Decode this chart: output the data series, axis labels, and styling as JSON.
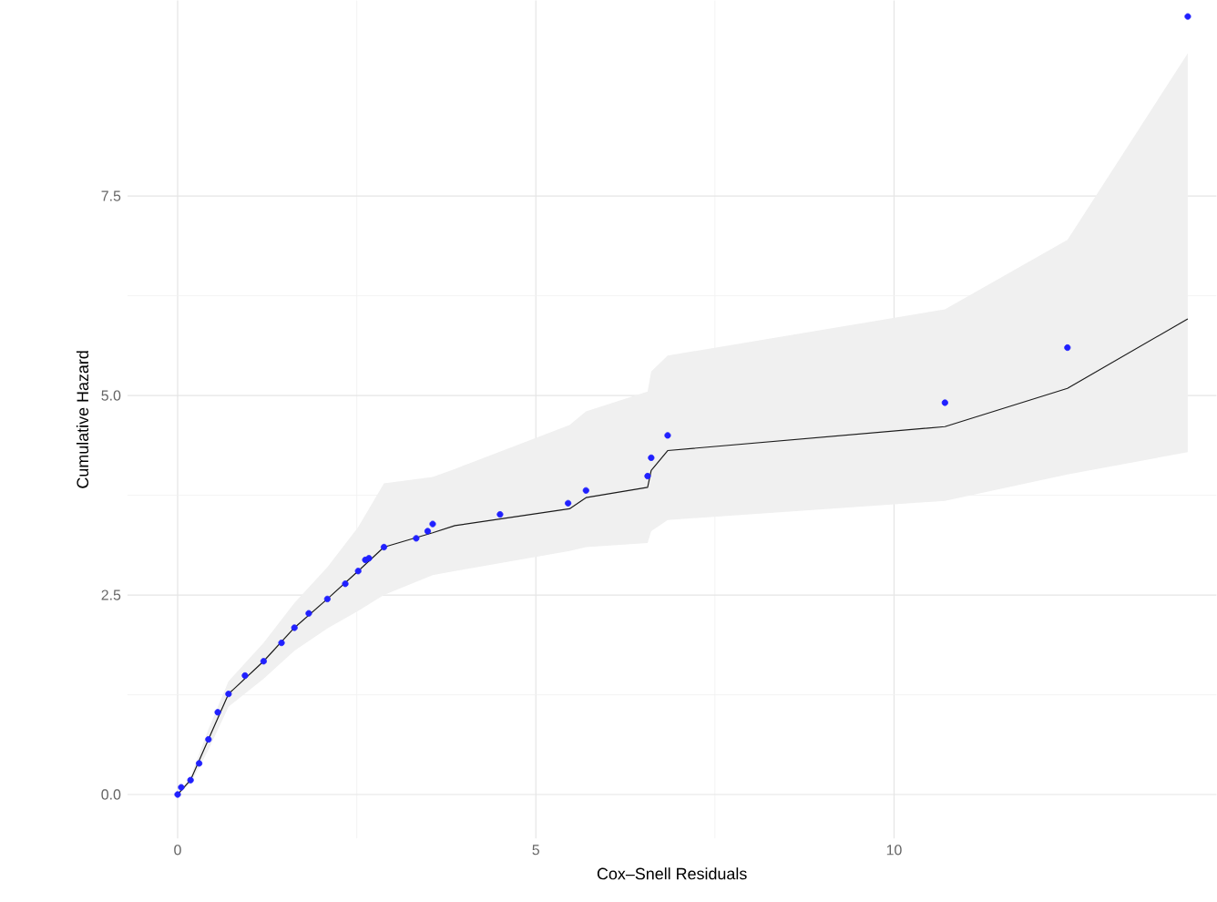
{
  "chart_data": {
    "type": "scatter",
    "xlabel": "Cox–Snell Residuals",
    "ylabel": "Cumulative Hazard",
    "xlim": [
      -0.7,
      14.5
    ],
    "ylim": [
      -0.55,
      9.95
    ],
    "xticks": [
      0,
      5,
      10
    ],
    "yticks": [
      {
        "value": 0,
        "label": "0.0"
      },
      {
        "value": 2.5,
        "label": "2.5"
      },
      {
        "value": 5,
        "label": "5.0"
      },
      {
        "value": 7.5,
        "label": "7.5"
      }
    ],
    "grid": true,
    "series": [
      {
        "type": "line",
        "color": "#1a1a1a",
        "marker": "none",
        "line_style": "solid",
        "x": [
          0,
          0.18,
          0.43,
          0.71,
          1.2,
          1.63,
          2.09,
          2.52,
          2.88,
          3.56,
          3.87,
          5.47,
          5.7,
          6.56,
          6.61,
          6.84,
          10.71,
          12.42,
          14.1
        ],
        "values": [
          0,
          0.18,
          0.69,
          1.26,
          1.67,
          2.09,
          2.45,
          2.8,
          3.1,
          3.28,
          3.37,
          3.58,
          3.72,
          3.85,
          4.06,
          4.31,
          4.61,
          5.09,
          5.96
        ],
        "upper": [
          0,
          0.22,
          0.82,
          1.42,
          1.9,
          2.4,
          2.85,
          3.35,
          3.9,
          3.98,
          4.08,
          4.63,
          4.8,
          5.05,
          5.3,
          5.5,
          6.08,
          6.95,
          9.29
        ],
        "lower": [
          0,
          0.14,
          0.56,
          1.1,
          1.45,
          1.8,
          2.08,
          2.3,
          2.5,
          2.75,
          2.8,
          3.05,
          3.1,
          3.15,
          3.3,
          3.44,
          3.68,
          4.01,
          4.29
        ]
      },
      {
        "color": "#2020ff",
        "marker": "circle",
        "x": [
          0,
          0.05,
          0.18,
          0.3,
          0.43,
          0.56,
          0.71,
          0.94,
          1.2,
          1.45,
          1.63,
          1.83,
          2.09,
          2.34,
          2.52,
          2.62,
          2.67,
          2.88,
          3.33,
          3.49,
          3.56,
          4.5,
          5.45,
          5.7,
          6.56,
          6.61,
          6.84,
          10.71,
          12.42,
          14.1
        ],
        "values": [
          0,
          0.09,
          0.18,
          0.39,
          0.69,
          1.03,
          1.26,
          1.49,
          1.67,
          1.9,
          2.09,
          2.27,
          2.45,
          2.64,
          2.8,
          2.94,
          2.96,
          3.1,
          3.21,
          3.3,
          3.39,
          3.51,
          3.65,
          3.81,
          3.99,
          4.22,
          4.5,
          4.91,
          5.6,
          9.75
        ]
      }
    ]
  }
}
